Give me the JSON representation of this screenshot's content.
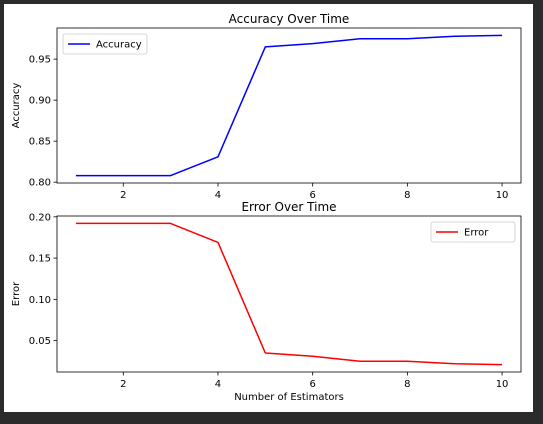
{
  "chart_data": [
    {
      "type": "line",
      "title": "Accuracy Over Time",
      "xlabel": "",
      "ylabel": "Accuracy",
      "x": [
        1,
        2,
        3,
        4,
        5,
        6,
        7,
        8,
        9,
        10
      ],
      "series": [
        {
          "name": "Accuracy",
          "color": "#0000ff",
          "values": [
            0.808,
            0.808,
            0.808,
            0.831,
            0.965,
            0.969,
            0.975,
            0.975,
            0.978,
            0.979
          ]
        }
      ],
      "xlim": [
        0.6,
        10.4
      ],
      "ylim": [
        0.799,
        0.988
      ],
      "xticks": [
        2,
        4,
        6,
        8,
        10
      ],
      "yticks": [
        0.8,
        0.85,
        0.9,
        0.95
      ],
      "ytick_labels": [
        "0.80",
        "0.85",
        "0.90",
        "0.95"
      ],
      "legend": "top-left",
      "grid": false
    },
    {
      "type": "line",
      "title": "Error Over Time",
      "xlabel": "Number of Estimators",
      "ylabel": "Error",
      "x": [
        1,
        2,
        3,
        4,
        5,
        6,
        7,
        8,
        9,
        10
      ],
      "series": [
        {
          "name": "Error",
          "color": "#ff0000",
          "values": [
            0.192,
            0.192,
            0.192,
            0.169,
            0.035,
            0.031,
            0.025,
            0.025,
            0.022,
            0.021
          ]
        }
      ],
      "xlim": [
        0.6,
        10.4
      ],
      "ylim": [
        0.012,
        0.201
      ],
      "xticks": [
        2,
        4,
        6,
        8,
        10
      ],
      "yticks": [
        0.05,
        0.1,
        0.15,
        0.2
      ],
      "ytick_labels": [
        "0.05",
        "0.10",
        "0.15",
        "0.20"
      ],
      "legend": "top-right",
      "grid": false
    }
  ]
}
